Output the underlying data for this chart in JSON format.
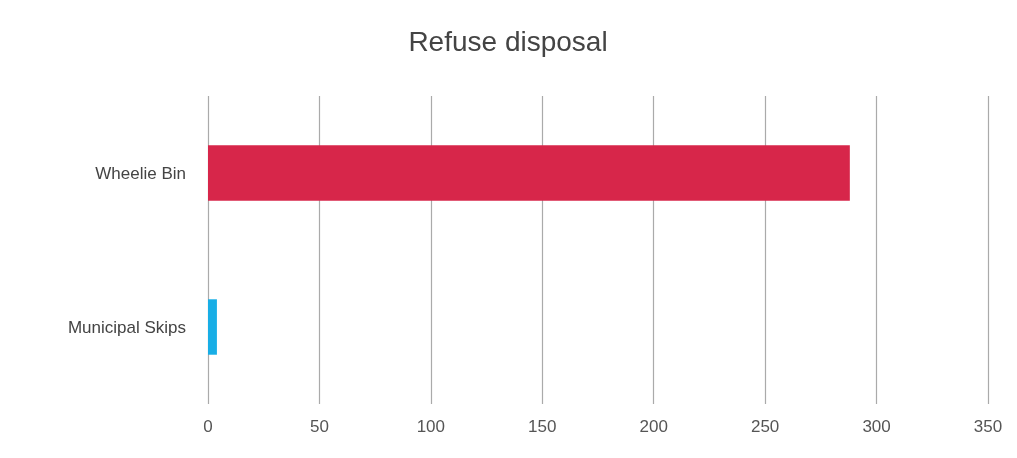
{
  "chart_data": {
    "type": "bar",
    "orientation": "horizontal",
    "title": "Refuse disposal",
    "categories": [
      "Wheelie Bin",
      "Municipal Skips"
    ],
    "values": [
      288,
      4
    ],
    "colors": [
      "#d7264a",
      "#18aee6"
    ],
    "xlim": [
      0,
      350
    ],
    "xticks": [
      0,
      50,
      100,
      150,
      200,
      250,
      300,
      350
    ],
    "grid": "x"
  }
}
